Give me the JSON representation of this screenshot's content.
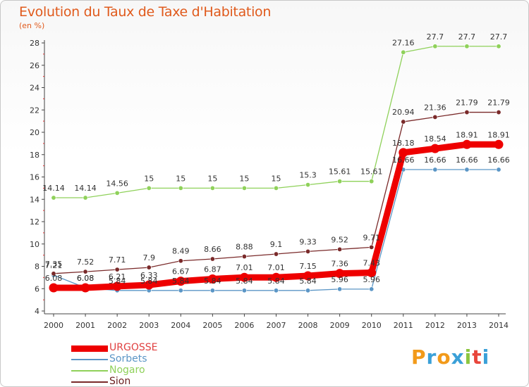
{
  "chart_data": {
    "type": "line",
    "title": "Evolution du Taux de Taxe d'Habitation",
    "subtitle": "(en %)",
    "x": [
      "2000",
      "2001",
      "2002",
      "2003",
      "2004",
      "2005",
      "2006",
      "2007",
      "2008",
      "2009",
      "2010",
      "2011",
      "2012",
      "2013",
      "2014"
    ],
    "ylim": [
      4,
      28
    ],
    "yticks": [
      4,
      6,
      8,
      10,
      12,
      14,
      16,
      18,
      20,
      22,
      24,
      26,
      28
    ],
    "grid": false,
    "legend_position": "bottom-left",
    "series": [
      {
        "name": "URGOSSE",
        "color": "#ee0000",
        "values": [
          6.08,
          6.08,
          6.21,
          6.33,
          6.67,
          6.87,
          7.01,
          7.01,
          7.15,
          7.36,
          7.43,
          18.18,
          18.54,
          18.91,
          18.91
        ],
        "labels": [
          "6.08",
          "6.08",
          "6.21",
          "6.33",
          "6.67",
          "6.87",
          "7.01",
          "7.01",
          "7.15",
          "7.36",
          "7.43",
          "18.18",
          "18.54",
          "18.91",
          "18.91"
        ]
      },
      {
        "name": "Sorbets",
        "color": "#5b96c6",
        "values": [
          7.21,
          6.08,
          5.84,
          5.84,
          5.84,
          5.84,
          5.84,
          5.84,
          5.84,
          5.96,
          5.96,
          16.66,
          16.66,
          16.66,
          16.66
        ],
        "labels": [
          "7.21",
          "6.08",
          "5.84",
          "5.84",
          "5.84",
          "5.84",
          "5.84",
          "5.84",
          "5.84",
          "5.96",
          "5.96",
          "16.66",
          "16.66",
          "16.66",
          "16.66"
        ]
      },
      {
        "name": "Nogaro",
        "color": "#8fd15a",
        "values": [
          14.14,
          14.14,
          14.56,
          15,
          15,
          15,
          15,
          15,
          15.3,
          15.61,
          15.61,
          27.16,
          27.7,
          27.7,
          27.7
        ],
        "labels": [
          "14.14",
          "14.14",
          "14.56",
          "15",
          "15",
          "15",
          "15",
          "15",
          "15.3",
          "15.61",
          "15.61",
          "27.16",
          "27.7",
          "27.7",
          "27.7"
        ]
      },
      {
        "name": "Sion",
        "color": "#7a2a2a",
        "values": [
          7.35,
          7.52,
          7.71,
          7.9,
          8.49,
          8.66,
          8.88,
          9.1,
          9.33,
          9.52,
          9.71,
          20.94,
          21.36,
          21.79,
          21.79
        ],
        "labels": [
          "7.35",
          "7.52",
          "7.71",
          "7.9",
          "8.49",
          "8.66",
          "8.88",
          "9.1",
          "9.33",
          "9.52",
          "9.71",
          "20.94",
          "21.36",
          "21.79",
          "21.79"
        ]
      }
    ]
  },
  "logo": {
    "letters": [
      "P",
      "r",
      "o",
      "x",
      "i",
      "t",
      "i"
    ],
    "colors": [
      "#f29a1a",
      "#3aa0d8",
      "#f29a1a",
      "#3aa0d8",
      "#8cc63f",
      "#e8463c",
      "#3aa0d8"
    ]
  }
}
